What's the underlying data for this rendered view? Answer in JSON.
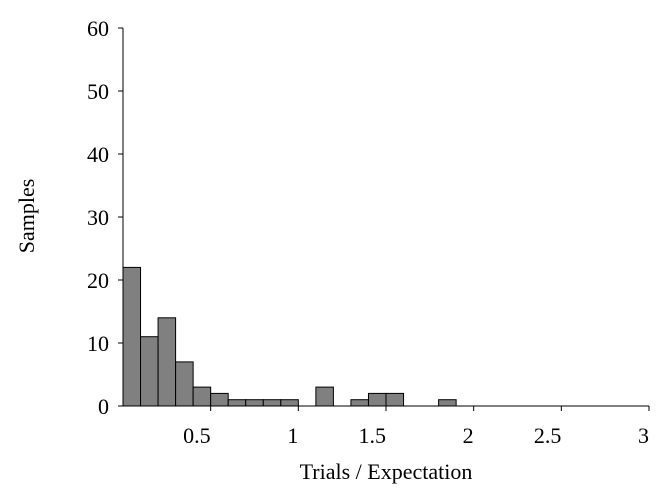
{
  "chart_data": {
    "type": "bar",
    "title": "",
    "xlabel": "Trials / Expectation",
    "ylabel": "Samples",
    "xlim": [
      0,
      3
    ],
    "ylim": [
      0,
      60
    ],
    "x_ticks": [
      "0.5",
      "1",
      "1.5",
      "2",
      "2.5",
      "3"
    ],
    "y_ticks": [
      "0",
      "10",
      "20",
      "30",
      "40",
      "50",
      "60"
    ],
    "grid": false,
    "bar_color": "#808080",
    "bin_width": 0.1,
    "bins": [
      {
        "x": 0.0,
        "value": 22
      },
      {
        "x": 0.1,
        "value": 11
      },
      {
        "x": 0.2,
        "value": 14
      },
      {
        "x": 0.3,
        "value": 7
      },
      {
        "x": 0.4,
        "value": 3
      },
      {
        "x": 0.5,
        "value": 2
      },
      {
        "x": 0.6,
        "value": 1
      },
      {
        "x": 0.7,
        "value": 1
      },
      {
        "x": 0.8,
        "value": 1
      },
      {
        "x": 0.9,
        "value": 1
      },
      {
        "x": 1.1,
        "value": 3
      },
      {
        "x": 1.3,
        "value": 1
      },
      {
        "x": 1.4,
        "value": 2
      },
      {
        "x": 1.5,
        "value": 2
      },
      {
        "x": 1.8,
        "value": 1
      }
    ]
  }
}
